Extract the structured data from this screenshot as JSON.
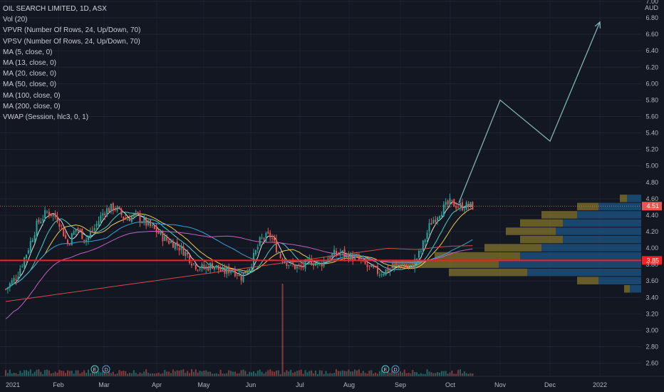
{
  "legend": {
    "title": "OIL SEARCH LIMITED, 1D, ASX",
    "indicators": [
      "Vol (20)",
      "VPVR (Number Of Rows, 24, Up/Down, 70)",
      "VPSV (Number Of Rows, 24, Up/Down, 70)",
      "MA (5, close, 0)",
      "MA (13, close, 0)",
      "MA (20, close, 0)",
      "MA (50, close, 0)",
      "MA (100, close, 0)",
      "MA (200, close, 0)",
      "VWAP (Session, hlc3, 0, 1)"
    ]
  },
  "colors": {
    "background": "#131722",
    "up": "#26a69a",
    "down": "#ef5350",
    "support": "#ff1e1e",
    "projection": "#7fb3b3",
    "vp_up": "#1e5a8c",
    "vp_down": "#8a7a2c"
  },
  "chart_data": {
    "type": "candlestick",
    "currency": "AUD",
    "y_ticks": [
      "2.60",
      "2.80",
      "3.00",
      "3.20",
      "3.40",
      "3.60",
      "3.80",
      "4.00",
      "4.20",
      "4.40",
      "4.60",
      "4.80",
      "5.00",
      "5.20",
      "5.40",
      "5.60",
      "5.80",
      "6.00",
      "6.20",
      "6.40",
      "6.60",
      "6.80",
      "7.00"
    ],
    "ylim": [
      2.44,
      7.0
    ],
    "x_ticks": [
      "2021",
      "Feb",
      "Mar",
      "Apr",
      "May",
      "Jun",
      "Jul",
      "Aug",
      "Sep",
      "Oct",
      "Nov",
      "Dec",
      "2022"
    ],
    "last_price": "4.51",
    "support_level": "3.85",
    "support_value": 3.85,
    "last_value": 4.51,
    "earnings_markers": [
      "E",
      "D",
      "E",
      "D"
    ],
    "price_path": [
      [
        "2021",
        3.5
      ],
      [
        "2021",
        3.65
      ],
      [
        "2021",
        3.95
      ],
      [
        "2021",
        4.3
      ],
      [
        "2021",
        4.45
      ],
      [
        "Feb",
        4.35
      ],
      [
        "Feb",
        4.05
      ],
      [
        "Feb",
        4.25
      ],
      [
        "Feb",
        4.1
      ],
      [
        "Feb",
        4.25
      ],
      [
        "Mar",
        4.45
      ],
      [
        "Mar",
        4.5
      ],
      [
        "Mar",
        4.35
      ],
      [
        "Mar",
        4.4
      ],
      [
        "Mar",
        4.3
      ],
      [
        "Apr",
        4.2
      ],
      [
        "Apr",
        4.1
      ],
      [
        "Apr",
        4.05
      ],
      [
        "Apr",
        3.95
      ],
      [
        "Apr",
        3.8
      ],
      [
        "May",
        3.75
      ],
      [
        "May",
        3.8
      ],
      [
        "May",
        3.7
      ],
      [
        "May",
        3.75
      ],
      [
        "May",
        3.65
      ],
      [
        "Jun",
        3.8
      ],
      [
        "Jun",
        4.1
      ],
      [
        "Jun",
        4.15
      ],
      [
        "Jun",
        3.9
      ],
      [
        "Jun",
        3.8
      ],
      [
        "Jul",
        3.75
      ],
      [
        "Jul",
        3.85
      ],
      [
        "Jul",
        3.8
      ],
      [
        "Jul",
        3.9
      ],
      [
        "Jul",
        3.95
      ],
      [
        "Aug",
        3.9
      ],
      [
        "Aug",
        3.85
      ],
      [
        "Aug",
        3.75
      ],
      [
        "Aug",
        3.7
      ],
      [
        "Aug",
        3.75
      ],
      [
        "Sep",
        3.8
      ],
      [
        "Sep",
        3.75
      ],
      [
        "Sep",
        3.95
      ],
      [
        "Sep",
        4.3
      ],
      [
        "Sep",
        4.45
      ],
      [
        "Oct",
        4.55
      ],
      [
        "Oct",
        4.51
      ]
    ],
    "projection": [
      {
        "x": "Oct",
        "y": 4.55
      },
      {
        "x": "Nov",
        "y": 5.8
      },
      {
        "x": "Dec",
        "y": 5.3
      },
      {
        "x": "2022",
        "y": 6.75
      }
    ],
    "volume_spike_month": "Jun",
    "volume_profile": [
      {
        "price": 4.6,
        "up": 0.1,
        "down": 0.05
      },
      {
        "price": 4.5,
        "up": 0.3,
        "down": 0.15
      },
      {
        "price": 4.4,
        "up": 0.45,
        "down": 0.25
      },
      {
        "price": 4.3,
        "up": 0.55,
        "down": 0.3
      },
      {
        "price": 4.2,
        "up": 0.6,
        "down": 0.35
      },
      {
        "price": 4.1,
        "up": 0.55,
        "down": 0.3
      },
      {
        "price": 4.0,
        "up": 0.7,
        "down": 0.4
      },
      {
        "price": 3.9,
        "up": 0.85,
        "down": 0.6
      },
      {
        "price": 3.8,
        "up": 1.0,
        "down": 0.75
      },
      {
        "price": 3.7,
        "up": 0.8,
        "down": 0.55
      },
      {
        "price": 3.6,
        "up": 0.3,
        "down": 0.15
      },
      {
        "price": 3.5,
        "up": 0.08,
        "down": 0.04
      }
    ]
  }
}
